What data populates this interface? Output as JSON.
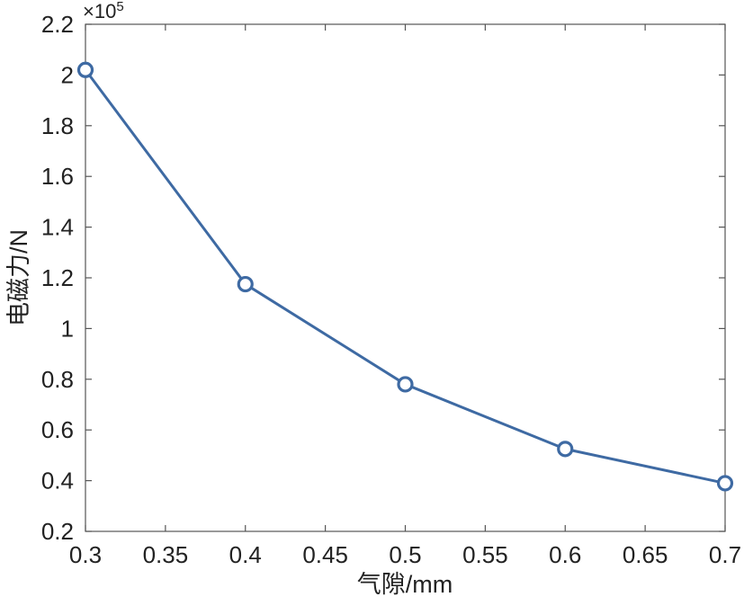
{
  "chart_data": {
    "type": "line",
    "title": "",
    "xlabel": "气隙/mm",
    "ylabel": "电磁力/N",
    "y_multiplier": {
      "base": "×10",
      "exponent": "5"
    },
    "xlim": [
      0.3,
      0.7
    ],
    "ylim": [
      0.2,
      2.2
    ],
    "x_ticks": [
      0.3,
      0.35,
      0.4,
      0.45,
      0.5,
      0.55,
      0.6,
      0.65,
      0.7
    ],
    "x_tick_labels": [
      "0.3",
      "0.35",
      "0.4",
      "0.45",
      "0.5",
      "0.55",
      "0.6",
      "0.65",
      "0.7"
    ],
    "y_ticks": [
      0.2,
      0.4,
      0.6,
      0.8,
      1.0,
      1.2,
      1.4,
      1.6,
      1.8,
      2.0,
      2.2
    ],
    "y_tick_labels": [
      "0.2",
      "0.4",
      "0.6",
      "0.8",
      "1",
      "1.2",
      "1.4",
      "1.6",
      "1.8",
      "2",
      "2.2"
    ],
    "grid": false,
    "series": [
      {
        "x": [
          0.3,
          0.4,
          0.5,
          0.6,
          0.7
        ],
        "y": [
          2.02,
          1.175,
          0.78,
          0.525,
          0.39
        ],
        "marker": "circle",
        "color": "#3e6aa3"
      }
    ]
  }
}
